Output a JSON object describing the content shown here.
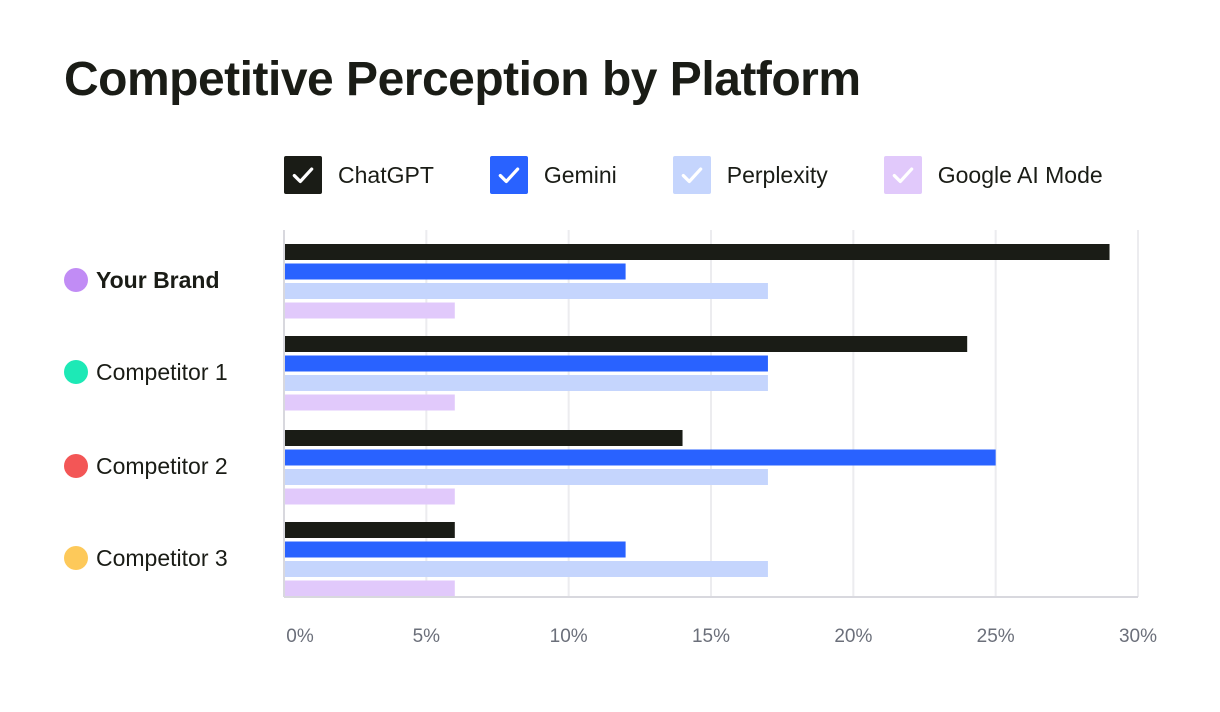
{
  "title": "Competitive Perception by Platform",
  "chart_data": {
    "type": "bar",
    "orientation": "horizontal",
    "title": "Competitive Perception by Platform",
    "xlabel": "",
    "ylabel": "",
    "xlim": [
      0,
      30
    ],
    "x_ticks": [
      "0%",
      "5%",
      "10%",
      "15%",
      "20%",
      "25%",
      "30%"
    ],
    "grid": "vertical",
    "legend_position": "top",
    "categories": [
      "Your Brand",
      "Competitor 1",
      "Competitor 2",
      "Competitor 3"
    ],
    "category_dot_colors": [
      "#c18cf5",
      "#1de9b6",
      "#f35656",
      "#fdc95a"
    ],
    "series": [
      {
        "name": "ChatGPT",
        "color": "#1a1c16",
        "values": [
          29,
          24,
          14,
          6
        ]
      },
      {
        "name": "Gemini",
        "color": "#2962ff",
        "values": [
          12,
          17,
          25,
          12
        ]
      },
      {
        "name": "Perplexity",
        "color": "#c5d5fd",
        "values": [
          17,
          17,
          17,
          17
        ]
      },
      {
        "name": "Google AI Mode",
        "color": "#e1c9fb",
        "values": [
          6,
          6,
          6,
          6
        ]
      }
    ]
  }
}
